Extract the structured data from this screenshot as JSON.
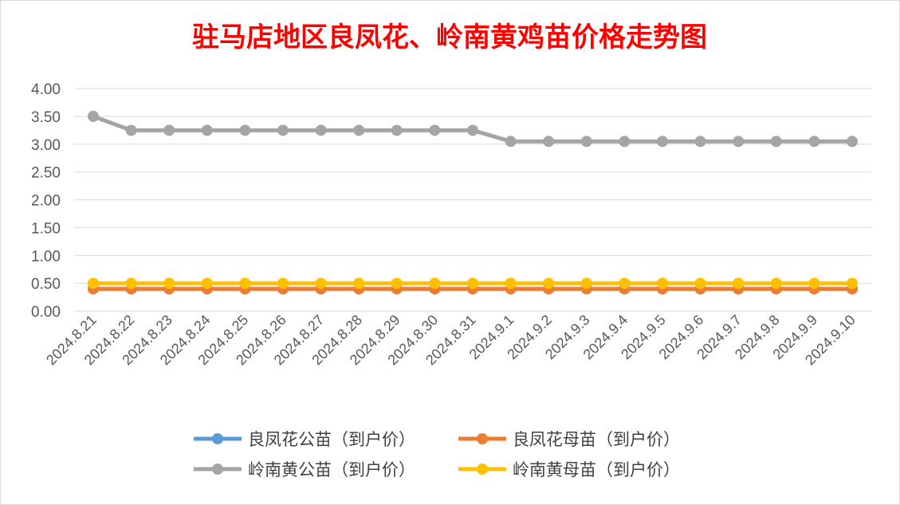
{
  "chart_data": {
    "type": "line",
    "title": "驻马店地区良凤花、岭南黄鸡苗价格走势图",
    "title_color": "#ff0000",
    "xlabel": "",
    "ylabel": "",
    "ylim": [
      0,
      4
    ],
    "y_ticks": [
      "0.00",
      "0.50",
      "1.00",
      "1.50",
      "2.00",
      "2.50",
      "3.00",
      "3.50",
      "4.00"
    ],
    "grid": true,
    "legend_position": "bottom",
    "categories": [
      "2024.8.21",
      "2024.8.22",
      "2024.8.23",
      "2024.8.24",
      "2024.8.25",
      "2024.8.26",
      "2024.8.27",
      "2024.8.28",
      "2024.8.29",
      "2024.8.30",
      "2024.8.31",
      "2024.9.1",
      "2024.9.2",
      "2024.9.3",
      "2024.9.4",
      "2024.9.5",
      "2024.9.6",
      "2024.9.7",
      "2024.9.8",
      "2024.9.9",
      "2024.9.10"
    ],
    "series": [
      {
        "name": "良凤花公苗（到户价）",
        "color": "#5b9bd5",
        "values": [
          0.4,
          0.4,
          0.4,
          0.4,
          0.4,
          0.4,
          0.4,
          0.4,
          0.4,
          0.4,
          0.4,
          0.4,
          0.4,
          0.4,
          0.4,
          0.4,
          0.4,
          0.4,
          0.4,
          0.4,
          0.4
        ]
      },
      {
        "name": "良凤花母苗（到户价）",
        "color": "#ed7d31",
        "values": [
          0.4,
          0.4,
          0.4,
          0.4,
          0.4,
          0.4,
          0.4,
          0.4,
          0.4,
          0.4,
          0.4,
          0.4,
          0.4,
          0.4,
          0.4,
          0.4,
          0.4,
          0.4,
          0.4,
          0.4,
          0.4
        ]
      },
      {
        "name": "岭南黄公苗（到户价）",
        "color": "#a5a5a5",
        "values": [
          3.5,
          3.25,
          3.25,
          3.25,
          3.25,
          3.25,
          3.25,
          3.25,
          3.25,
          3.25,
          3.25,
          3.05,
          3.05,
          3.05,
          3.05,
          3.05,
          3.05,
          3.05,
          3.05,
          3.05,
          3.05
        ]
      },
      {
        "name": "岭南黄母苗（到户价）",
        "color": "#ffc000",
        "values": [
          0.5,
          0.5,
          0.5,
          0.5,
          0.5,
          0.5,
          0.5,
          0.5,
          0.5,
          0.5,
          0.5,
          0.5,
          0.5,
          0.5,
          0.5,
          0.5,
          0.5,
          0.5,
          0.5,
          0.5,
          0.5
        ]
      }
    ]
  }
}
